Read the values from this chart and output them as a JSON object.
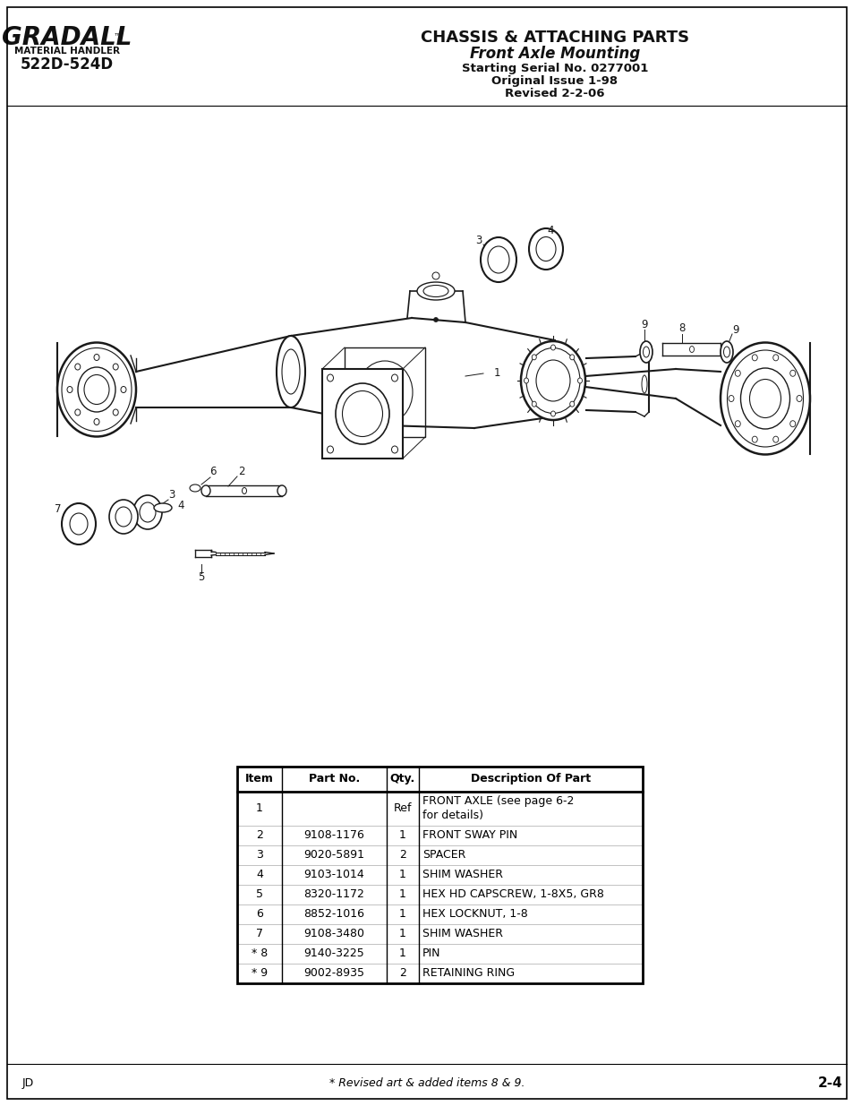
{
  "page_bg": "#ffffff",
  "logo_text": "GRADALL",
  "logo_subtitle": "MATERIAL HANDLER",
  "logo_model": "522D-524D",
  "title_line1": "CHASSIS & ATTACHING PARTS",
  "title_line2": "Front Axle Mounting",
  "title_line3": "Starting Serial No. 0277001",
  "title_line4": "Original Issue 1-98",
  "title_line5": "Revised 2-2-06",
  "footer_left": "JD",
  "footer_center": "* Revised art & added items 8 & 9.",
  "footer_right": "2-4",
  "table_headers": [
    "Item",
    "Part No.",
    "Qty.",
    "Description Of Part"
  ],
  "table_rows": [
    [
      "1",
      "",
      "Ref",
      "FRONT AXLE (see page 6-2\nfor details)"
    ],
    [
      "2",
      "9108-1176",
      "1",
      "FRONT SWAY PIN"
    ],
    [
      "3",
      "9020-5891",
      "2",
      "SPACER"
    ],
    [
      "4",
      "9103-1014",
      "1",
      "SHIM WASHER"
    ],
    [
      "5",
      "8320-1172",
      "1",
      "HEX HD CAPSCREW, 1-8X5, GR8"
    ],
    [
      "6",
      "8852-1016",
      "1",
      "HEX LOCKNUT, 1-8"
    ],
    [
      "7",
      "9108-3480",
      "1",
      "SHIM WASHER"
    ],
    [
      "* 8",
      "9140-3225",
      "1",
      "PIN"
    ],
    [
      "* 9",
      "9002-8935",
      "2",
      "RETAINING RING"
    ]
  ]
}
